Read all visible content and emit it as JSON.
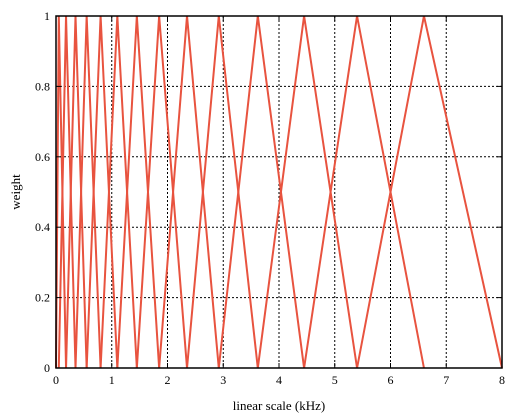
{
  "chart_data": {
    "type": "line",
    "title": "",
    "xlabel": "linear scale (kHz)",
    "ylabel": "weight",
    "xlim": [
      0,
      8
    ],
    "ylim": [
      0,
      1
    ],
    "xticks": [
      "0",
      "1",
      "2",
      "3",
      "4",
      "5",
      "6",
      "7",
      "8"
    ],
    "yticks": [
      "0",
      "0.2",
      "0.4",
      "0.6",
      "0.8",
      "1"
    ],
    "grid": true,
    "line_color": "#e8533f",
    "filter_centers_khz": [
      0,
      0.05,
      0.18,
      0.35,
      0.55,
      0.8,
      1.1,
      1.45,
      1.85,
      2.35,
      2.92,
      3.62,
      4.45,
      5.4,
      6.6,
      8.0
    ]
  }
}
